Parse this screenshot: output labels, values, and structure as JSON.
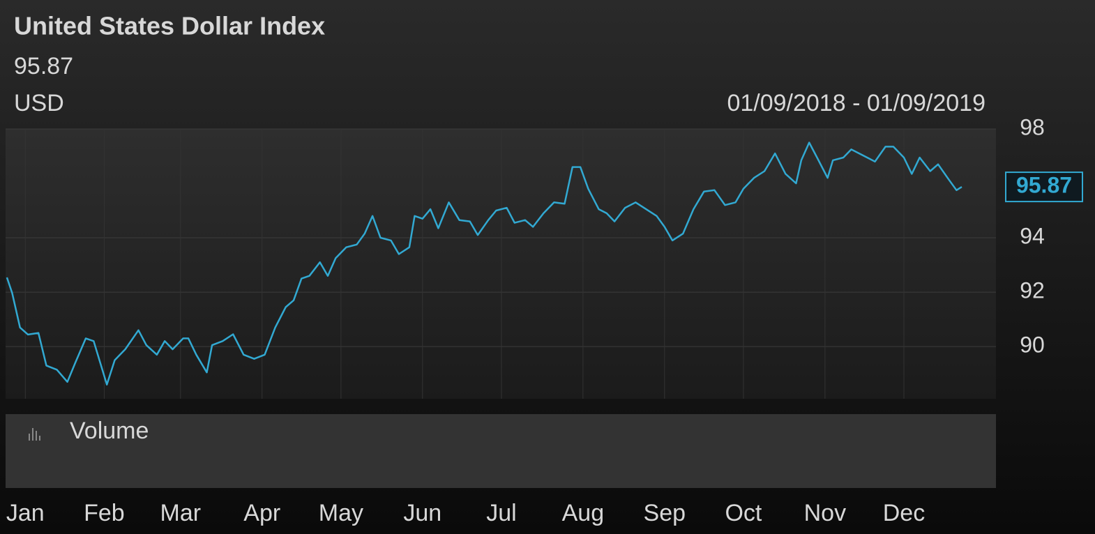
{
  "chart_data": {
    "type": "line",
    "title": "United States Dollar Index",
    "last_value": 95.87,
    "currency": "USD",
    "date_range": "01/09/2018 - 01/09/2019",
    "panel_label": "Volume",
    "x": [
      8,
      10,
      13,
      16,
      20,
      23,
      27,
      31,
      34,
      38,
      41,
      46,
      49,
      53,
      58,
      61,
      65,
      68,
      71,
      75,
      77,
      80,
      84,
      86,
      90,
      94,
      98,
      102,
      106,
      110,
      114,
      117,
      120,
      123,
      127,
      130,
      133,
      137,
      141,
      144,
      147,
      150,
      154,
      157,
      161,
      163,
      166,
      169,
      172,
      176,
      180,
      184,
      187,
      191,
      194,
      198,
      201,
      205,
      208,
      212,
      216,
      220,
      223,
      226,
      229,
      233,
      236,
      239,
      243,
      247,
      251,
      255,
      258,
      261,
      265,
      269,
      273,
      277,
      281,
      285,
      288,
      292,
      296,
      300,
      304,
      308,
      310,
      313,
      316,
      320,
      322,
      326,
      329,
      332,
      336,
      338,
      342,
      345,
      349,
      352,
      355,
      359,
      362,
      366,
      369,
      371
    ],
    "series": [
      {
        "color": "#32a9d2",
        "values": [
          92.54,
          91.97,
          90.7,
          90.44,
          90.5,
          89.3,
          89.15,
          88.7,
          89.4,
          90.3,
          90.2,
          88.6,
          89.5,
          89.9,
          90.6,
          90.05,
          89.7,
          90.2,
          89.9,
          90.3,
          90.3,
          89.7,
          89.05,
          90.05,
          90.2,
          90.45,
          89.7,
          89.55,
          89.7,
          90.7,
          91.45,
          91.7,
          92.5,
          92.6,
          93.1,
          92.6,
          93.25,
          93.65,
          93.75,
          94.15,
          94.8,
          94.0,
          93.9,
          93.4,
          93.65,
          94.8,
          94.7,
          95.05,
          94.35,
          95.3,
          94.65,
          94.6,
          94.1,
          94.65,
          95.0,
          95.1,
          94.55,
          94.65,
          94.4,
          94.9,
          95.3,
          95.25,
          96.6,
          96.6,
          95.8,
          95.05,
          94.9,
          94.6,
          95.1,
          95.3,
          95.05,
          94.8,
          94.4,
          93.9,
          94.15,
          95.05,
          95.7,
          95.75,
          95.2,
          95.3,
          95.8,
          96.2,
          96.45,
          97.1,
          96.35,
          96.0,
          96.85,
          97.5,
          96.95,
          96.2,
          96.85,
          96.95,
          97.25,
          97.1,
          96.9,
          96.8,
          97.35,
          97.35,
          96.95,
          96.35,
          96.95,
          96.45,
          96.7,
          96.15,
          95.75,
          95.87
        ]
      }
    ],
    "xlim": [
      7.5,
      384
    ],
    "xticks": [
      {
        "value": 15,
        "label": "Jan"
      },
      {
        "value": 45,
        "label": "Feb"
      },
      {
        "value": 74,
        "label": "Mar"
      },
      {
        "value": 105,
        "label": "Apr"
      },
      {
        "value": 135,
        "label": "May"
      },
      {
        "value": 166,
        "label": "Jun"
      },
      {
        "value": 196,
        "label": "Jul"
      },
      {
        "value": 227,
        "label": "Aug"
      },
      {
        "value": 258,
        "label": "Sep"
      },
      {
        "value": 288,
        "label": "Oct"
      },
      {
        "value": 319,
        "label": "Nov"
      },
      {
        "value": 349,
        "label": "Dec"
      }
    ],
    "ylim": [
      88.08,
      98
    ],
    "yticks": [
      90,
      92,
      94,
      98
    ],
    "grid": true
  }
}
